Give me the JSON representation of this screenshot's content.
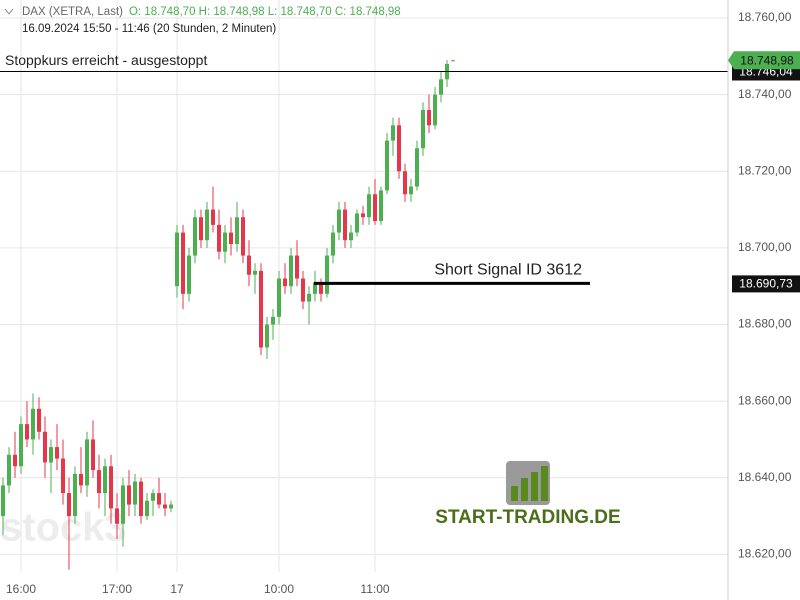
{
  "header": {
    "symbol": "DAX (XETRA, Last)",
    "ohlc": "O: 18.748,70  H: 18.748,98  L: 18.748,70  C: 18.748,98",
    "range": "16.09.2024 15:50 - 11:46  (20 Stunden, 2 Minuten)"
  },
  "logo": {
    "text": "START-TRADING.DE",
    "watermark": "stock3"
  },
  "chart_data": {
    "type": "candlestick",
    "categories": [
      null,
      null,
      null,
      "16:00",
      null,
      null,
      null,
      null,
      null,
      null,
      null,
      null,
      null,
      null,
      null,
      null,
      null,
      null,
      null,
      "17:00",
      null,
      null,
      null,
      null,
      null,
      null,
      null,
      null,
      null,
      "17",
      null,
      null,
      null,
      null,
      null,
      null,
      null,
      null,
      null,
      null,
      null,
      null,
      null,
      null,
      null,
      null,
      "10:00",
      null,
      null,
      null,
      null,
      null,
      null,
      null,
      null,
      null,
      null,
      null,
      null,
      null,
      null,
      null,
      "11:00",
      null,
      null,
      null,
      null,
      null,
      null,
      null,
      null,
      null,
      null,
      null,
      null,
      null
    ],
    "open": [
      18630,
      18638,
      18646,
      18643,
      18654,
      18650,
      18658,
      18652,
      18644,
      18648,
      18645,
      18636,
      18630,
      18641,
      18638,
      18650,
      18642,
      18636,
      18643,
      18632,
      18628,
      18638,
      18633,
      18639,
      18630,
      18634,
      18636,
      18633,
      18632,
      18690,
      18704,
      18688,
      18698,
      18708,
      18702,
      18710,
      18706,
      18699,
      18704,
      18701,
      18708,
      18698,
      18693,
      18694,
      18674,
      18680,
      18682,
      18692,
      18690,
      18698,
      18692,
      18686,
      18688,
      18691,
      18688,
      18698,
      18704,
      18710,
      18702,
      18704,
      18709,
      18708,
      18714,
      18707,
      18715,
      18728,
      18732,
      18720,
      18714,
      18716,
      18726,
      18736,
      18732,
      18740,
      18744,
      18748.7
    ],
    "high": [
      18640,
      18648,
      18652,
      18656,
      18660,
      18662,
      18661,
      18656,
      18650,
      18654,
      18650,
      18640,
      18643,
      18648,
      18652,
      18655,
      18646,
      18645,
      18646,
      18636,
      18640,
      18642,
      18641,
      18640,
      18636,
      18637,
      18640,
      18636,
      18634,
      18706,
      18706,
      18700,
      18710,
      18710,
      18712,
      18716,
      18710,
      18706,
      18708,
      18712,
      18710,
      18702,
      18696,
      18696,
      18682,
      18684,
      18694,
      18696,
      18700,
      18702,
      18694,
      18690,
      18694,
      18692,
      18700,
      18706,
      18712,
      18712,
      18706,
      18710,
      18711,
      18716,
      18718,
      18716,
      18730,
      18734,
      18734,
      18722,
      18718,
      18728,
      18738,
      18740,
      18742,
      18746,
      18749,
      18748.98
    ],
    "low": [
      18625,
      18636,
      18640,
      18641,
      18648,
      18646,
      18650,
      18640,
      18636,
      18642,
      18633,
      18616,
      18628,
      18636,
      18635,
      18640,
      18632,
      18630,
      18628,
      18624,
      18622,
      18630,
      18630,
      18628,
      18629,
      18630,
      18632,
      18630,
      18631,
      18687,
      18684,
      18686,
      18696,
      18700,
      18700,
      18704,
      18697,
      18696,
      18698,
      18699,
      18696,
      18690,
      18688,
      18672,
      18671,
      18676,
      18680,
      18688,
      18688,
      18690,
      18684,
      18680,
      18686,
      18686,
      18687,
      18696,
      18702,
      18700,
      18700,
      18703,
      18706,
      18706,
      18706,
      18706,
      18714,
      18724,
      18718,
      18712,
      18712,
      18715,
      18724,
      18730,
      18731,
      18738,
      18742,
      18748.7
    ],
    "close": [
      18638,
      18646,
      18643,
      18654,
      18650,
      18658,
      18652,
      18644,
      18648,
      18645,
      18636,
      18630,
      18641,
      18638,
      18650,
      18642,
      18636,
      18643,
      18632,
      18628,
      18638,
      18633,
      18639,
      18630,
      18634,
      18636,
      18633,
      18632,
      18633,
      18704,
      18688,
      18698,
      18708,
      18702,
      18710,
      18706,
      18699,
      18704,
      18701,
      18708,
      18698,
      18693,
      18694,
      18674,
      18680,
      18682,
      18692,
      18690,
      18698,
      18692,
      18686,
      18688,
      18691,
      18688,
      18698,
      18704,
      18710,
      18702,
      18704,
      18709,
      18708,
      18714,
      18707,
      18715,
      18728,
      18732,
      18720,
      18714,
      18716,
      18726,
      18736,
      18732,
      18740,
      18744,
      18748,
      18748.98
    ],
    "up_color": "#4caf50",
    "down_color": "#e5364b",
    "ylim": [
      18615.4,
      18764.7
    ],
    "yticks": [
      {
        "value": 18620,
        "label": "18.620,00"
      },
      {
        "value": 18640,
        "label": "18.640,00"
      },
      {
        "value": 18660,
        "label": "18.660,00"
      },
      {
        "value": 18680,
        "label": "18.680,00"
      },
      {
        "value": 18700,
        "label": "18.700,00"
      },
      {
        "value": 18720,
        "label": "18.720,00"
      },
      {
        "value": 18740,
        "label": "18.740,00"
      },
      {
        "value": 18760,
        "label": "18.760,00"
      }
    ],
    "grid": true,
    "last_price": {
      "value": 18748.98,
      "label": "18.748,98"
    },
    "levels": [
      {
        "text": "Stoppkurs erreicht - ausgestoppt",
        "value": 18746.04,
        "label": "18.746,04"
      },
      {
        "text": "Short Signal  ID 3612",
        "value": 18690.73,
        "label": "18.690,73"
      }
    ]
  }
}
